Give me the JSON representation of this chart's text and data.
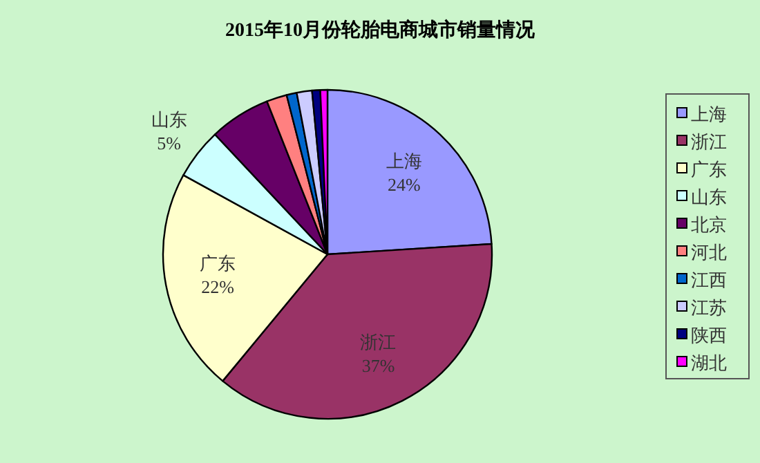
{
  "chart_data": {
    "type": "pie",
    "title": "2015年10月份轮胎电商城市销量情况",
    "categories": [
      "上海",
      "浙江",
      "广东",
      "山东",
      "北京",
      "河北",
      "江西",
      "江苏",
      "陕西",
      "湖北"
    ],
    "values": [
      24,
      37,
      22,
      5,
      6,
      2,
      1,
      1.5,
      0.8,
      0.7
    ],
    "colors": [
      "#9999ff",
      "#993366",
      "#ffffcc",
      "#ccffff",
      "#660066",
      "#ff8080",
      "#0066cc",
      "#ccccff",
      "#000080",
      "#ff00ff"
    ],
    "value_labels": [
      "24%",
      "37%",
      "22%",
      "5%",
      null,
      null,
      null,
      null,
      null,
      null
    ],
    "legend": "right"
  }
}
